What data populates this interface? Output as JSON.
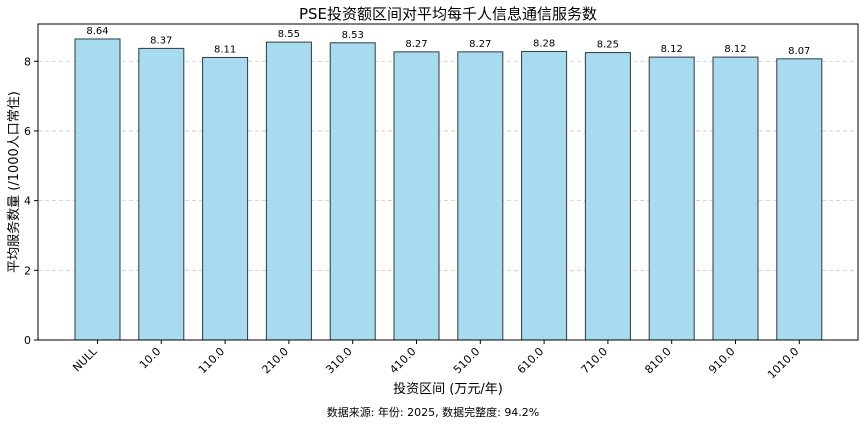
{
  "chart_data": {
    "type": "bar",
    "title": "PSE投资额区间对平均每千人信息通信服务数",
    "xlabel": "投资区间 (万元/年)",
    "ylabel": "平均服务数量 (/1000人口常住)",
    "categories": [
      "NULL",
      "10.0",
      "110.0",
      "210.0",
      "310.0",
      "410.0",
      "510.0",
      "610.0",
      "710.0",
      "810.0",
      "910.0",
      "1010.0"
    ],
    "values": [
      8.64,
      8.37,
      8.11,
      8.55,
      8.53,
      8.27,
      8.27,
      8.28,
      8.25,
      8.12,
      8.12,
      8.07
    ],
    "value_labels": [
      "8.64",
      "8.37",
      "8.11",
      "8.55",
      "8.53",
      "8.27",
      "8.27",
      "8.28",
      "8.25",
      "8.12",
      "8.12",
      "8.07"
    ],
    "ylim": [
      0,
      9.07
    ],
    "yticks": [
      0,
      2,
      4,
      6,
      8
    ],
    "ytick_labels": [
      "0",
      "2",
      "4",
      "6",
      "8"
    ],
    "grid": true,
    "bar_color": "#a8dbef",
    "edge_color": "#2b3a42",
    "footnote": "数据来源: 年份: 2025, 数据完整度: 94.2%"
  }
}
